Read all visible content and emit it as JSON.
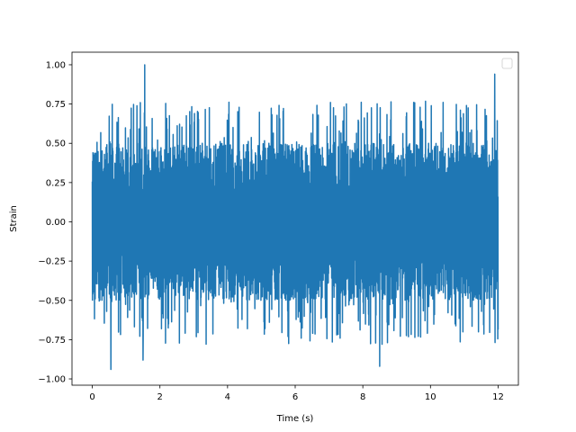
{
  "chart_data": {
    "type": "line",
    "title": "",
    "xlabel": "Time (s)",
    "ylabel": "Strain",
    "xlim": [
      -0.6,
      12.6
    ],
    "ylim": [
      -1.04,
      1.08
    ],
    "xticks": [
      0,
      2,
      4,
      6,
      8,
      10,
      12
    ],
    "xtick_labels": [
      "0",
      "2",
      "4",
      "6",
      "8",
      "10",
      "12"
    ],
    "yticks": [
      1.0,
      0.75,
      0.5,
      0.25,
      0.0,
      -0.25,
      -0.5,
      -0.75,
      -1.0
    ],
    "ytick_labels": [
      "1.00",
      "0.75",
      "0.50",
      "0.25",
      "0.00",
      "−0.25",
      "−0.50",
      "−0.75",
      "−1.00"
    ],
    "grid": false,
    "legend": {
      "placement": "top-right",
      "entries": []
    },
    "series": [
      {
        "color": "#1f77b4",
        "x_range": [
          0,
          12
        ],
        "n_points": 2400,
        "envelope": [
          0.5,
          -0.5
        ],
        "peaks": [
          {
            "x": 1.55,
            "y": 1.0
          },
          {
            "x": 11.9,
            "y": 0.94
          },
          {
            "x": 0.55,
            "y": -0.94
          },
          {
            "x": 8.5,
            "y": -0.92
          },
          {
            "x": 1.5,
            "y": -0.88
          }
        ]
      }
    ]
  }
}
